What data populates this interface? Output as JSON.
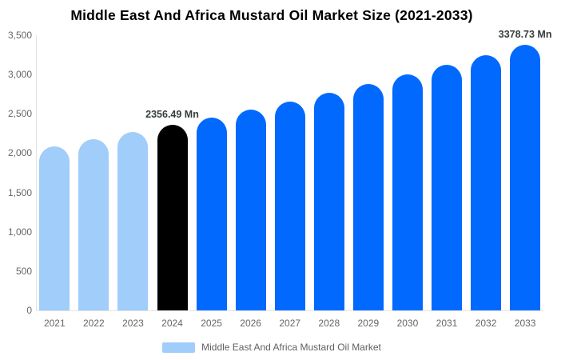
{
  "chart_data": {
    "type": "bar",
    "title": "Middle East And Africa Mustard Oil Market Size (2021-2033)",
    "unit": "Mn",
    "categories": [
      "2021",
      "2022",
      "2023",
      "2024",
      "2025",
      "2026",
      "2027",
      "2028",
      "2029",
      "2030",
      "2031",
      "2032",
      "2033"
    ],
    "values": [
      2089,
      2175,
      2264,
      2356.49,
      2453,
      2553,
      2658,
      2766,
      2880,
      2997,
      3120,
      3248,
      3378.73
    ],
    "bar_colors": [
      "#A0CDFA",
      "#A0CDFA",
      "#A0CDFA",
      "#000000",
      "#0169FE",
      "#0169FE",
      "#0169FE",
      "#0169FE",
      "#0169FE",
      "#0169FE",
      "#0169FE",
      "#0169FE",
      "#0169FE"
    ],
    "data_labels": {
      "2024": "2356.49 Mn",
      "2033": "3378.73 Mn"
    },
    "ylim": [
      0,
      3500
    ],
    "yticks": {
      "values": [
        0,
        500,
        1000,
        1500,
        2000,
        2500,
        3000,
        3500
      ],
      "labels": [
        "0",
        "500",
        "1,000",
        "1,500",
        "2,000",
        "2,500",
        "3,000",
        "3,500"
      ]
    },
    "grid": false,
    "legend": {
      "label": "Middle East And Africa Mustard Oil Market",
      "swatch_color": "#A0CDFA",
      "position": "bottom"
    }
  },
  "colors": {
    "history_bar": "#A0CDFA",
    "current_year_bar": "#000000",
    "forecast_bar": "#0169FE",
    "axis_line": "#E3E3E3",
    "tick_text": "#666666",
    "data_label_text": "#373D3F",
    "legend_text": "#5F5F5F"
  }
}
